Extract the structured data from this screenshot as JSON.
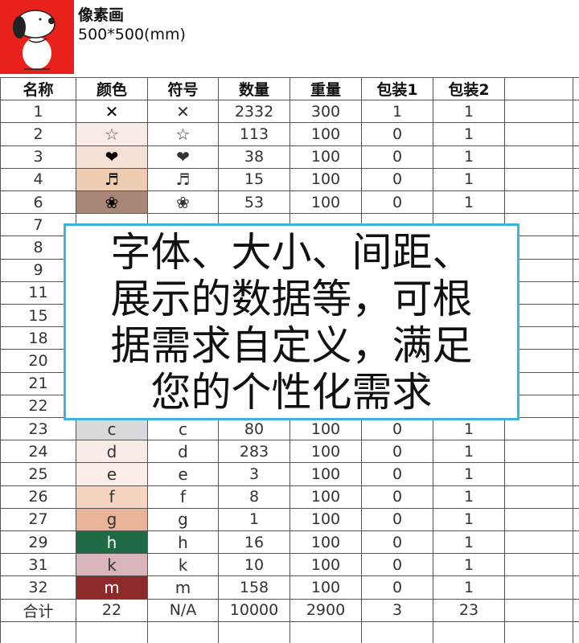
{
  "header": {
    "title": "像素画",
    "size": "500*500(mm)"
  },
  "table": {
    "columns": [
      "名称",
      "颜色",
      "符号",
      "数量",
      "重量",
      "包装1",
      "包装2"
    ],
    "rows": [
      {
        "cells": [
          1,
          "✕",
          "✕",
          2332,
          300,
          1,
          1
        ],
        "color": "#ffffff",
        "text_color": "#000000"
      },
      {
        "cells": [
          2,
          "☆",
          "☆",
          113,
          100,
          0,
          1
        ],
        "color": "#faece7",
        "text_color": "#555555"
      },
      {
        "cells": [
          3,
          "❤",
          "❤",
          38,
          100,
          0,
          1
        ],
        "color": "#f6e1d6",
        "text_color": "#000000"
      },
      {
        "cells": [
          4,
          "♬",
          "♬",
          15,
          100,
          0,
          1
        ],
        "color": "#efcbb1",
        "text_color": "#000000"
      },
      {
        "cells": [
          6,
          "❀",
          "❀",
          53,
          100,
          0,
          1
        ],
        "color": "#a88777",
        "text_color": "#000000"
      },
      {
        "cells": [
          7
        ]
      },
      {
        "cells": [
          8
        ]
      },
      {
        "cells": [
          9
        ]
      },
      {
        "cells": [
          11
        ]
      },
      {
        "cells": [
          15
        ]
      },
      {
        "cells": [
          18
        ]
      },
      {
        "cells": [
          20
        ]
      },
      {
        "cells": [
          21
        ]
      },
      {
        "cells": [
          22
        ]
      },
      {
        "cells": [
          23,
          "c",
          "c",
          80,
          100,
          0,
          1
        ],
        "color": "#d9d9de",
        "text_color": "#333333"
      },
      {
        "cells": [
          24,
          "d",
          "d",
          283,
          100,
          0,
          1
        ],
        "color": "#f8ece8",
        "text_color": "#333333"
      },
      {
        "cells": [
          25,
          "e",
          "e",
          3,
          100,
          0,
          1
        ],
        "color": "#fbeee8",
        "text_color": "#333333"
      },
      {
        "cells": [
          26,
          "f",
          "f",
          8,
          100,
          0,
          1
        ],
        "color": "#f7d4bf",
        "text_color": "#333333"
      },
      {
        "cells": [
          27,
          "g",
          "g",
          1,
          100,
          0,
          1
        ],
        "color": "#e8b396",
        "text_color": "#333333"
      },
      {
        "cells": [
          29,
          "h",
          "h",
          16,
          100,
          0,
          1
        ],
        "color": "#1e6b45",
        "text_color": "#ffffff"
      },
      {
        "cells": [
          31,
          "k",
          "k",
          10,
          100,
          0,
          1
        ],
        "color": "#d9b5bb",
        "text_color": "#333333"
      },
      {
        "cells": [
          32,
          "m",
          "m",
          158,
          100,
          0,
          1
        ],
        "color": "#8e2b2a",
        "text_color": "#ffffff"
      }
    ],
    "total": [
      "合计",
      22,
      "N/A",
      10000,
      2900,
      3,
      23
    ]
  },
  "overlay": {
    "lines": [
      "字体、大小、间距、",
      "展示的数据等，可根",
      "据需求自定义，满足",
      "您的个性化需求"
    ]
  }
}
